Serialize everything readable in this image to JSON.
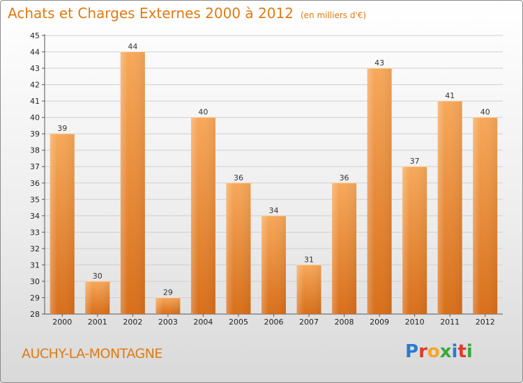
{
  "title": "Achats et Charges Externes 2000 à 2012",
  "subtitle": "(en milliers d'€)",
  "commune": "AUCHY-LA-MONTAGNE",
  "logo": {
    "letters": [
      "P",
      "r",
      "o",
      "x",
      "i",
      "t",
      "i"
    ],
    "colors": [
      "#2a7bd0",
      "#e23a2a",
      "#f5a623",
      "#3aa83a",
      "#2a7bd0",
      "#e23a2a",
      "#3aa83a"
    ]
  },
  "colors": {
    "bar_top": "#f7a85a",
    "bar_bottom": "#d86f1a",
    "title": "#e07a10"
  },
  "chart_data": {
    "type": "bar",
    "categories": [
      "2000",
      "2001",
      "2002",
      "2003",
      "2004",
      "2005",
      "2006",
      "2007",
      "2008",
      "2009",
      "2010",
      "2011",
      "2012"
    ],
    "values": [
      39,
      30,
      44,
      29,
      40,
      36,
      34,
      31,
      36,
      43,
      37,
      41,
      40
    ],
    "ylim": [
      28,
      45
    ],
    "yticks": [
      28,
      29,
      30,
      31,
      32,
      33,
      34,
      35,
      36,
      37,
      38,
      39,
      40,
      41,
      42,
      43,
      44,
      45
    ],
    "grid": true
  }
}
